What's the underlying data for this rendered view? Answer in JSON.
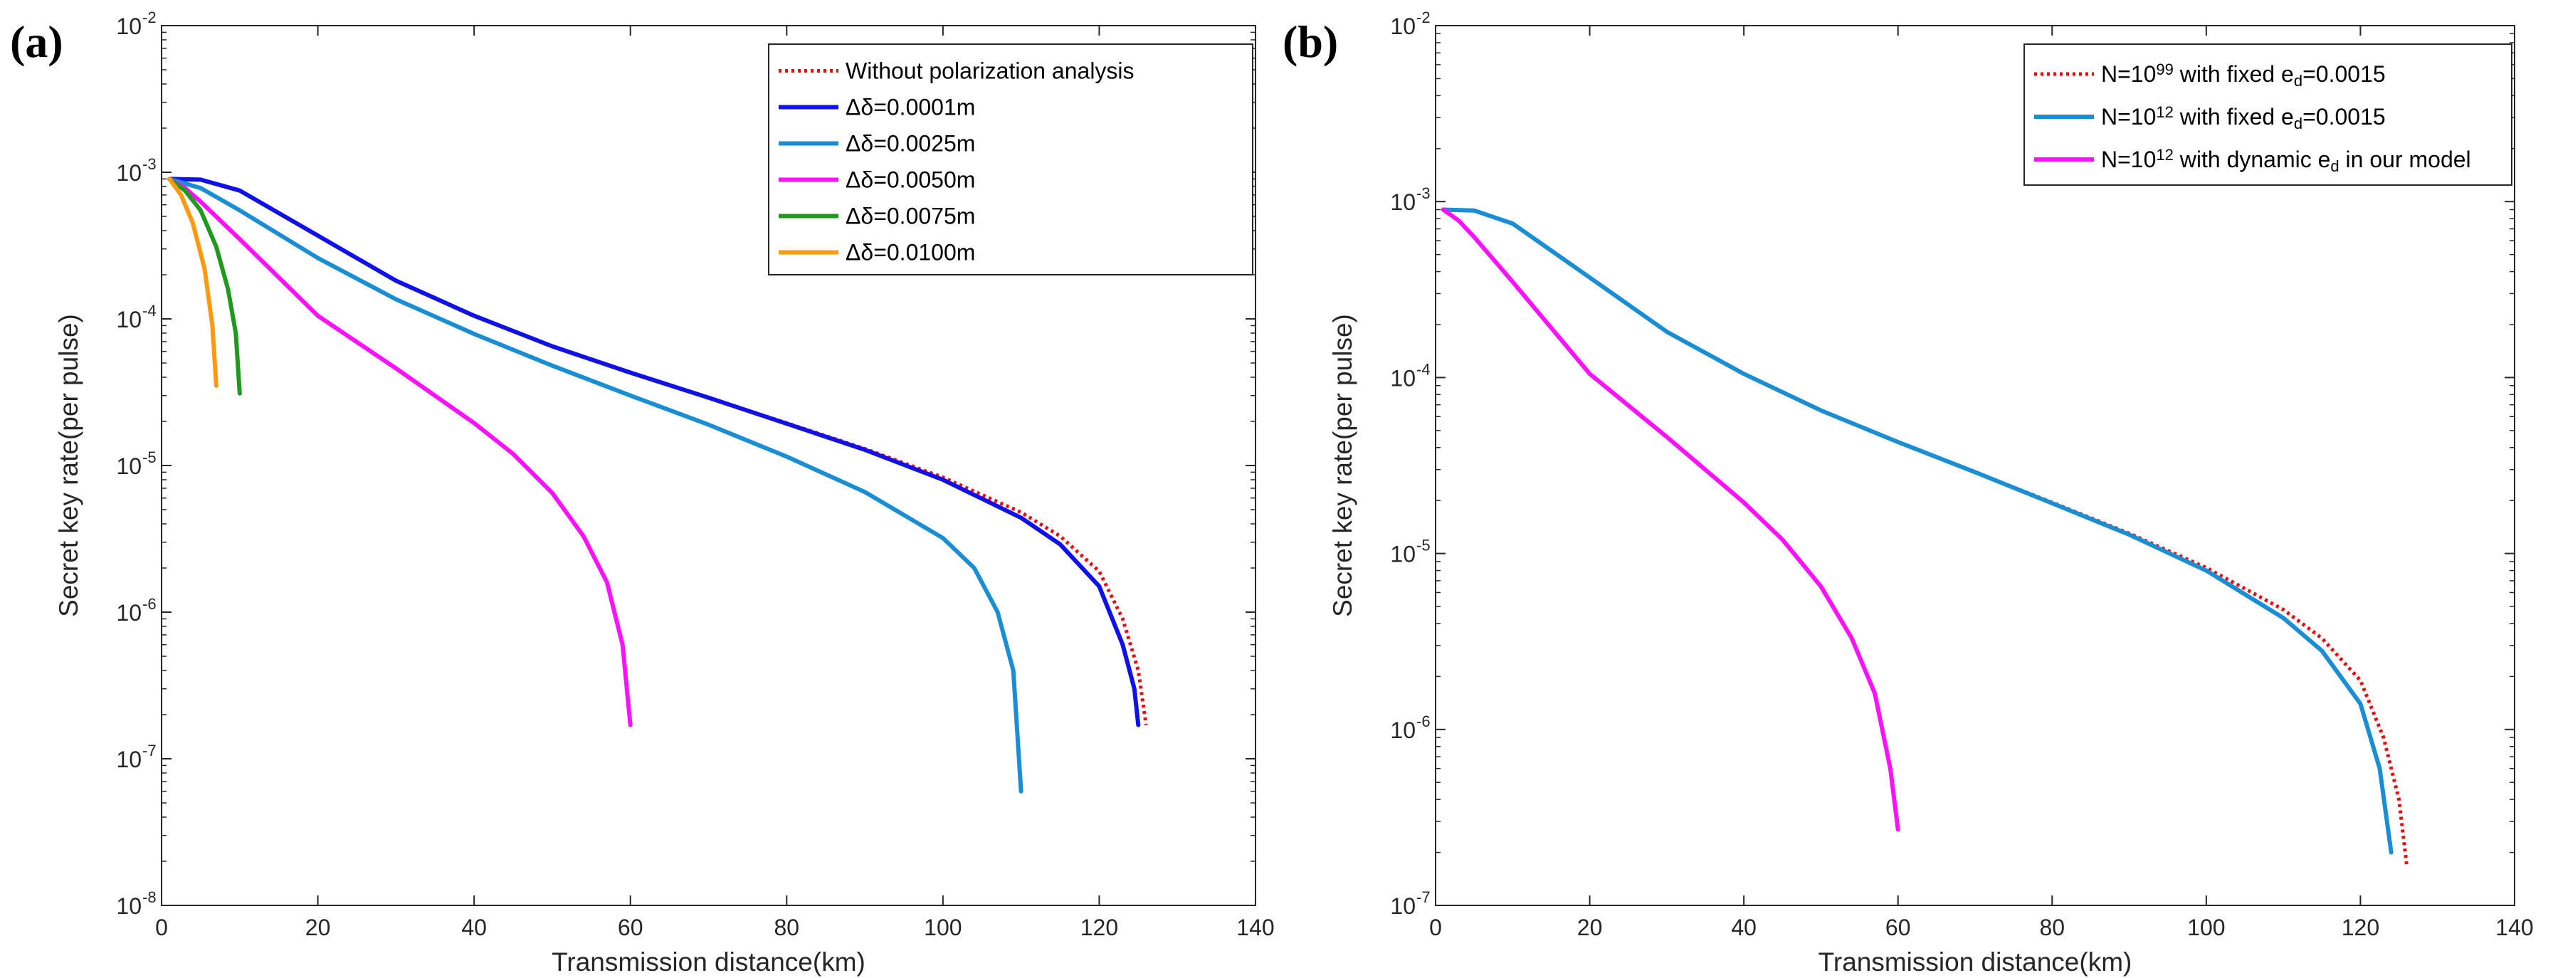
{
  "chart_data": [
    {
      "panel_label": "(a)",
      "type": "line",
      "yscale": "log",
      "xlabel": "Transmission distance(km)",
      "ylabel": "Secret key rate(per pulse)",
      "xlim": [
        0,
        140
      ],
      "ylim_exponents": [
        -8,
        -2
      ],
      "xticks": [
        "0",
        "20",
        "40",
        "60",
        "80",
        "100",
        "120",
        "140"
      ],
      "yticks": [
        {
          "base": "10",
          "exp": "-8"
        },
        {
          "base": "10",
          "exp": "-7"
        },
        {
          "base": "10",
          "exp": "-6"
        },
        {
          "base": "10",
          "exp": "-5"
        },
        {
          "base": "10",
          "exp": "-4"
        },
        {
          "base": "10",
          "exp": "-3"
        },
        {
          "base": "10",
          "exp": "-2"
        }
      ],
      "legend_position": "top-right",
      "series": [
        {
          "name": "Without polarization analysis",
          "color": "#ff0000",
          "dashed": true,
          "x": [
            1,
            5,
            10,
            20,
            30,
            40,
            50,
            60,
            70,
            80,
            90,
            100,
            110,
            115,
            120,
            123,
            125,
            126
          ],
          "y": [
            0.0009,
            0.00089,
            0.00075,
            0.00037,
            0.000182,
            0.000105,
            6.5e-05,
            4.3e-05,
            2.9e-05,
            1.95e-05,
            1.3e-05,
            8.3e-06,
            4.8e-06,
            3.3e-06,
            1.9e-06,
            9e-07,
            4e-07,
            1.7e-07
          ]
        },
        {
          "name": "Δδ=0.0001m",
          "color": "#1010e8",
          "dashed": false,
          "x": [
            1,
            5,
            10,
            20,
            30,
            40,
            50,
            60,
            70,
            80,
            90,
            100,
            110,
            115,
            120,
            123,
            124.5,
            125
          ],
          "y": [
            0.0009,
            0.00089,
            0.00075,
            0.00037,
            0.000182,
            0.000105,
            6.5e-05,
            4.3e-05,
            2.9e-05,
            1.93e-05,
            1.28e-05,
            8e-06,
            4.4e-06,
            2.9e-06,
            1.5e-06,
            6e-07,
            3e-07,
            1.7e-07
          ]
        },
        {
          "name": "Δδ=0.0025m",
          "color": "#1a8ed4",
          "dashed": false,
          "x": [
            1,
            5,
            10,
            20,
            30,
            40,
            50,
            60,
            70,
            80,
            90,
            100,
            104,
            107,
            109,
            110
          ],
          "y": [
            0.0009,
            0.00078,
            0.00055,
            0.00026,
            0.000136,
            7.9e-05,
            4.8e-05,
            3e-05,
            1.9e-05,
            1.15e-05,
            6.6e-06,
            3.2e-06,
            2e-06,
            1e-06,
            4e-07,
            6e-08
          ]
        },
        {
          "name": "Δδ=0.0050m",
          "color": "#ff10ff",
          "dashed": false,
          "x": [
            1,
            3,
            5,
            10,
            20,
            30,
            40,
            45,
            50,
            54,
            57,
            59,
            60
          ],
          "y": [
            0.0009,
            0.00078,
            0.00063,
            0.00035,
            0.000105,
            4.6e-05,
            1.95e-05,
            1.2e-05,
            6.5e-06,
            3.3e-06,
            1.6e-06,
            6e-07,
            1.7e-07
          ]
        },
        {
          "name": "Δδ=0.0075m",
          "color": "#1f9a1f",
          "dashed": false,
          "x": [
            1,
            3,
            5,
            7,
            8.5,
            9.5,
            10
          ],
          "y": [
            0.0009,
            0.00075,
            0.00055,
            0.00031,
            0.00016,
            8e-05,
            3.1e-05
          ]
        },
        {
          "name": "Δδ=0.0100m",
          "color": "#ff9a10",
          "dashed": false,
          "x": [
            1,
            2.5,
            4,
            5.5,
            6.5,
            7
          ],
          "y": [
            0.0009,
            0.0007,
            0.00045,
            0.00022,
            9e-05,
            3.5e-05
          ]
        }
      ]
    },
    {
      "panel_label": "(b)",
      "type": "line",
      "yscale": "log",
      "xlabel": "Transmission distance(km)",
      "ylabel": "Secret key rate(per pulse)",
      "xlim": [
        0,
        140
      ],
      "ylim_exponents": [
        -7,
        -2
      ],
      "xticks": [
        "0",
        "20",
        "40",
        "60",
        "80",
        "100",
        "120",
        "140"
      ],
      "yticks": [
        {
          "base": "10",
          "exp": "-7"
        },
        {
          "base": "10",
          "exp": "-6"
        },
        {
          "base": "10",
          "exp": "-5"
        },
        {
          "base": "10",
          "exp": "-4"
        },
        {
          "base": "10",
          "exp": "-3"
        },
        {
          "base": "10",
          "exp": "-2"
        }
      ],
      "legend_position": "top-right",
      "series": [
        {
          "name": "N=10^99 with fixed e_d=0.0015",
          "label": [
            {
              "t": "N=10"
            },
            {
              "t": "99",
              "sup": true
            },
            {
              "t": " with fixed e"
            },
            {
              "t": "d",
              "sub": true
            },
            {
              "t": "=0.0015"
            }
          ],
          "color": "#ff0000",
          "dashed": true,
          "x": [
            1,
            5,
            10,
            20,
            30,
            40,
            50,
            60,
            70,
            80,
            90,
            100,
            110,
            115,
            120,
            123,
            125,
            126
          ],
          "y": [
            0.0009,
            0.00089,
            0.00075,
            0.00037,
            0.000182,
            0.000105,
            6.5e-05,
            4.3e-05,
            2.9e-05,
            1.95e-05,
            1.3e-05,
            8.3e-06,
            4.8e-06,
            3.3e-06,
            1.9e-06,
            9e-07,
            4e-07,
            1.7e-07
          ]
        },
        {
          "name": "N=10^12 with fixed e_d=0.0015",
          "label": [
            {
              "t": "N=10"
            },
            {
              "t": "12",
              "sup": true
            },
            {
              "t": " with fixed e"
            },
            {
              "t": "d",
              "sub": true
            },
            {
              "t": "=0.0015"
            }
          ],
          "color": "#1a8ed4",
          "dashed": false,
          "x": [
            1,
            5,
            10,
            20,
            30,
            40,
            50,
            60,
            70,
            80,
            90,
            100,
            110,
            115,
            120,
            122.5,
            124
          ],
          "y": [
            0.0009,
            0.00089,
            0.00075,
            0.00037,
            0.000182,
            0.000105,
            6.5e-05,
            4.3e-05,
            2.9e-05,
            1.93e-05,
            1.28e-05,
            8e-06,
            4.3e-06,
            2.8e-06,
            1.4e-06,
            6e-07,
            2e-07
          ]
        },
        {
          "name": "N=10^12 with dynamic e_d in our model",
          "label": [
            {
              "t": "N=10"
            },
            {
              "t": "12",
              "sup": true
            },
            {
              "t": " with dynamic e"
            },
            {
              "t": "d",
              "sub": true
            },
            {
              "t": " in our model"
            }
          ],
          "color": "#ff10ff",
          "dashed": false,
          "x": [
            1,
            3,
            5,
            10,
            20,
            30,
            40,
            45,
            50,
            54,
            57,
            59,
            60
          ],
          "y": [
            0.0009,
            0.00078,
            0.00063,
            0.00035,
            0.000105,
            4.6e-05,
            1.95e-05,
            1.2e-05,
            6.5e-06,
            3.3e-06,
            1.6e-06,
            6e-07,
            2.7e-07
          ]
        }
      ]
    }
  ]
}
